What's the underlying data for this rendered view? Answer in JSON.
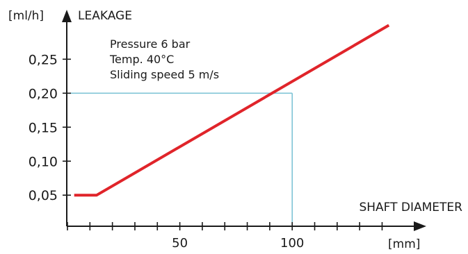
{
  "chart_data": {
    "type": "line",
    "ylabel": "LEAKAGE",
    "yunit": "[ml/h]",
    "xlabel": "SHAFT DIAMETER",
    "xunit": "[mm]",
    "annotations": [
      "Pressure 6 bar",
      "Temp. 40°C",
      "Sliding speed 5 m/s"
    ],
    "xlim": [
      0,
      150
    ],
    "ylim": [
      0.02,
      0.3
    ],
    "x_ticks": [
      0,
      10,
      20,
      30,
      40,
      50,
      60,
      70,
      80,
      90,
      100,
      110,
      120,
      130,
      140
    ],
    "x_tick_labels": [
      {
        "value": 50,
        "label": "50"
      },
      {
        "value": 100,
        "label": "100"
      }
    ],
    "y_ticks": [
      {
        "value": 0.05,
        "label": "0,05"
      },
      {
        "value": 0.1,
        "label": "0,10"
      },
      {
        "value": 0.15,
        "label": "0,15"
      },
      {
        "value": 0.2,
        "label": "0,20"
      },
      {
        "value": 0.25,
        "label": "0,25"
      }
    ],
    "series": [
      {
        "color": "#e0242a",
        "points": [
          [
            3,
            0.05
          ],
          [
            13,
            0.05
          ],
          [
            143,
            0.3
          ]
        ]
      }
    ],
    "reference": {
      "x": 100,
      "y": 0.2,
      "color": "#7fc4d6"
    },
    "grid": false
  }
}
